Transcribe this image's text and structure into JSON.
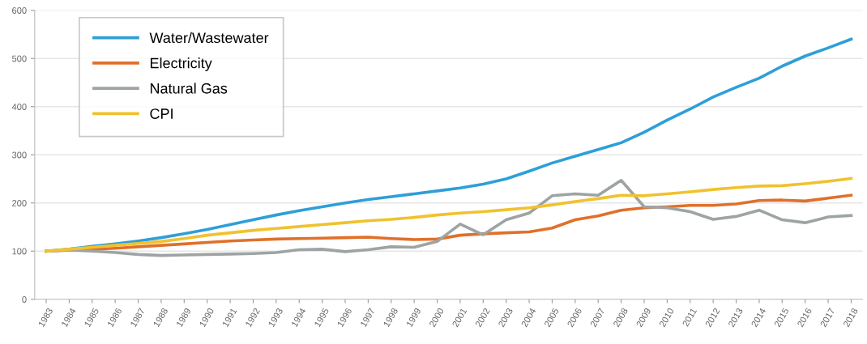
{
  "chart_data": {
    "type": "line",
    "categories": [
      "1983",
      "1984",
      "1985",
      "1986",
      "1987",
      "1988",
      "1989",
      "1990",
      "1991",
      "1992",
      "1993",
      "1994",
      "1995",
      "1996",
      "1997",
      "1998",
      "1999",
      "2000",
      "2001",
      "2002",
      "2003",
      "2004",
      "2005",
      "2006",
      "2007",
      "2008",
      "2009",
      "2010",
      "2011",
      "2012",
      "2013",
      "2014",
      "2015",
      "2016",
      "2017",
      "2018"
    ],
    "series": [
      {
        "name": "Water/Wastewater",
        "color": "#2e9fd8",
        "values": [
          100,
          104,
          110,
          115,
          121,
          128,
          136,
          145,
          155,
          165,
          175,
          184,
          192,
          200,
          207,
          213,
          219,
          225,
          231,
          239,
          250,
          266,
          283,
          297,
          311,
          325,
          347,
          372,
          395,
          420,
          440,
          459,
          484,
          505,
          522,
          540
        ]
      },
      {
        "name": "Electricity",
        "color": "#e0702a",
        "values": [
          100,
          102,
          104,
          106,
          109,
          112,
          115,
          118,
          121,
          123,
          125,
          126,
          127,
          128,
          129,
          126,
          124,
          125,
          133,
          136,
          138,
          140,
          148,
          165,
          173,
          185,
          190,
          192,
          195,
          195,
          198,
          205,
          206,
          204,
          210,
          216
        ]
      },
      {
        "name": "Natural Gas",
        "color": "#9ea3a3",
        "values": [
          100,
          102,
          100,
          97,
          93,
          91,
          92,
          93,
          94,
          95,
          97,
          103,
          104,
          99,
          103,
          109,
          108,
          120,
          156,
          134,
          165,
          179,
          215,
          219,
          216,
          247,
          192,
          190,
          182,
          166,
          172,
          185,
          165,
          159,
          171,
          174
        ]
      },
      {
        "name": "CPI",
        "color": "#f0c22e",
        "values": [
          100,
          104,
          108,
          112,
          116,
          120,
          126,
          133,
          138,
          143,
          147,
          151,
          155,
          159,
          163,
          166,
          170,
          175,
          179,
          182,
          186,
          190,
          196,
          203,
          209,
          216,
          215,
          219,
          223,
          228,
          232,
          235,
          236,
          240,
          245,
          251
        ]
      }
    ],
    "ylim": [
      0,
      600
    ],
    "yticks": [
      0,
      100,
      200,
      300,
      400,
      500,
      600
    ],
    "grid": "y",
    "legend": "top left",
    "marker": "none",
    "line_style": "solid"
  }
}
